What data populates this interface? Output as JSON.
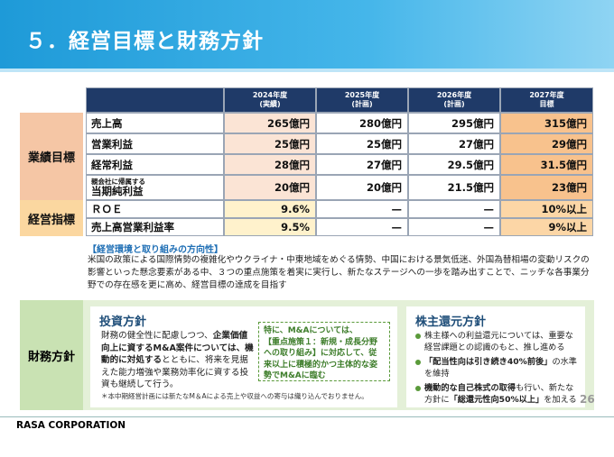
{
  "header": {
    "title": "５．経営目標と財務方針"
  },
  "table": {
    "columns": [
      "2024年度\n(実績)",
      "2025年度\n(計画)",
      "2026年度\n(計画)",
      "2027年度\n目標"
    ],
    "groups": [
      {
        "label": "業績目標",
        "rows": [
          {
            "label": "売上高",
            "values": [
              "265億円",
              "280億円",
              "295億円",
              "315億円"
            ]
          },
          {
            "label": "営業利益",
            "values": [
              "25億円",
              "25億円",
              "27億円",
              "29億円"
            ]
          },
          {
            "label": "経常利益",
            "values": [
              "28億円",
              "27億円",
              "29.5億円",
              "31.5億円"
            ]
          },
          {
            "label": [
              "親会社に帰属する",
              "当期純利益"
            ],
            "values": [
              "20億円",
              "20億円",
              "21.5億円",
              "23億円"
            ]
          }
        ]
      },
      {
        "label": "経営指標",
        "rows": [
          {
            "label": "ＲＯＥ",
            "values": [
              "9.6%",
              "—",
              "—",
              "10%以上"
            ]
          },
          {
            "label": "売上高営業利益率",
            "values": [
              "9.5%",
              "—",
              "—",
              "9%以上"
            ]
          }
        ]
      }
    ]
  },
  "direction": {
    "heading": "【経営環境と取り組みの方向性】",
    "body": "米国の政策による国際情勢の複雑化やウクライナ・中東地域をめぐる情勢、中国における景気低迷、外国為替相場の変動リスクの影響といった懸念要素がある中、３つの重点施策を着実に実行し、新たなステージへの一歩を踏み出すことで、ニッチな各事業分野での存在感を更に高め、経営目標の達成を目指す"
  },
  "financial_policy": {
    "label": "財務方針",
    "investment": {
      "title": "投資方針",
      "body": [
        "財務の健全性に配慮しつつ、",
        "企業価値向上に資するM&A案件については、機動的に対処する",
        "とともに、将来を見据えた能力増強や業務効率化に資する投資も継続して行う。"
      ],
      "callout": "特に、M&Aについては、\n【重点施策１：新規・成長分野への取り組み】に対応して、従来以上に積極的かつ主体的な姿勢でM&Aに臨む",
      "note": "＊本中期経営計画には新たなM＆Aによる売上や収益への寄与は織り込んでおりません。"
    },
    "shareholder": {
      "title": "株主還元方針",
      "items": [
        [
          "株主様への利益還元については、重要な経営課題との認識のもと、推し進める"
        ],
        [
          "「配当性向は引き続き40%前後」",
          "の水準を維持"
        ],
        [
          "機動的な自己株式の取得",
          "も行い、新たな方針に",
          "「総還元性向50%以上」",
          "を加える"
        ]
      ]
    }
  },
  "footer": {
    "company": "RASA CORPORATION",
    "page": 26
  }
}
